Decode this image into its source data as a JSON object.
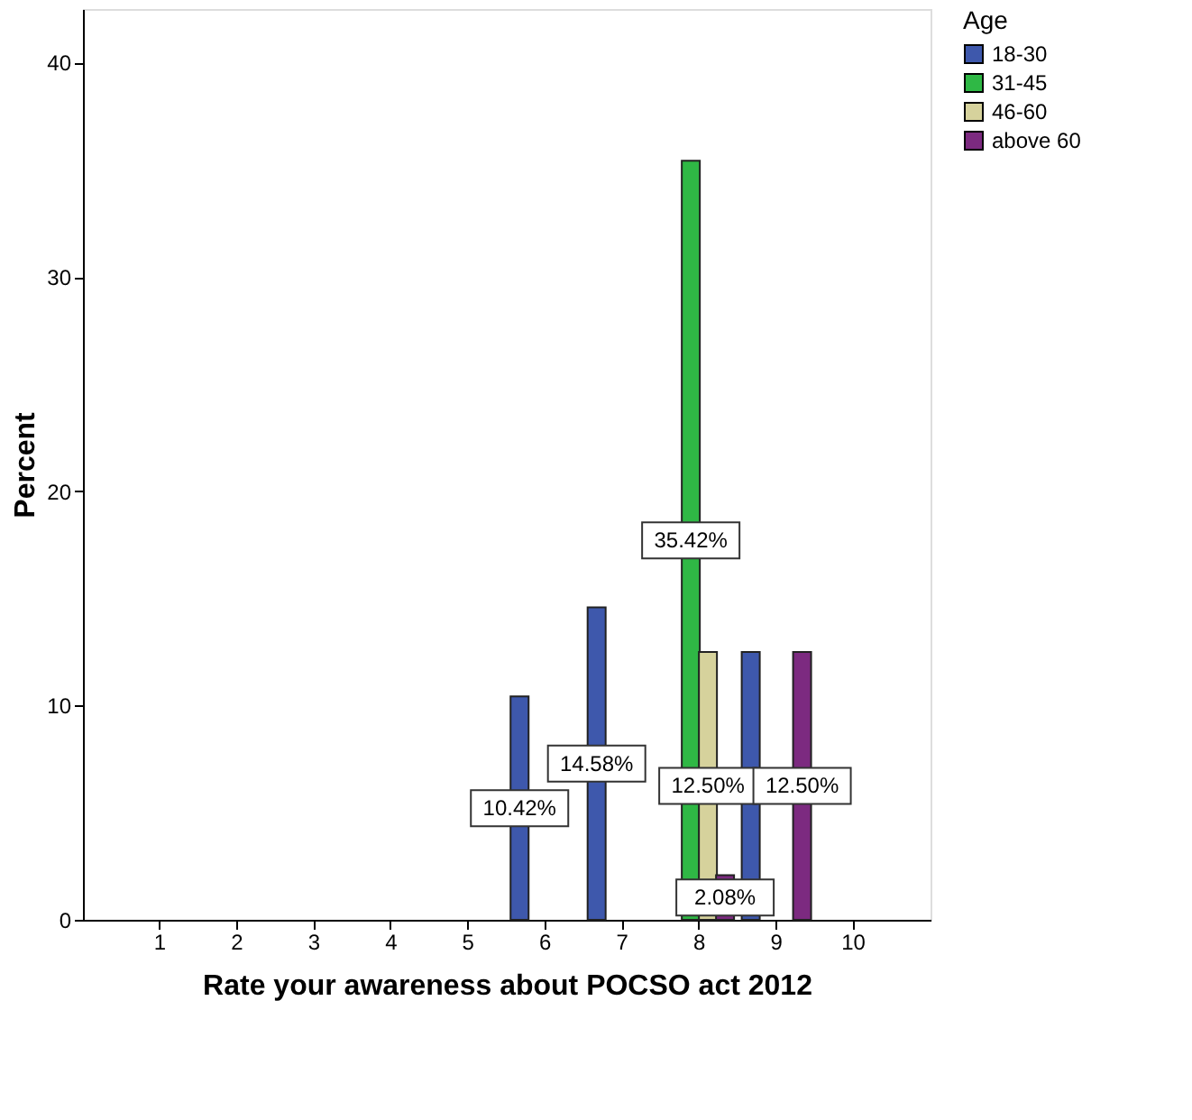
{
  "chart_data": {
    "type": "bar",
    "xlabel": "Rate your awareness about POCSO act 2012",
    "ylabel": "Percent",
    "legend_title": "Age",
    "legend": "top right",
    "categories": [
      "1",
      "2",
      "3",
      "4",
      "5",
      "6",
      "7",
      "8",
      "9",
      "10"
    ],
    "series": [
      {
        "name": "18-30",
        "color": "#3e58ac",
        "values": [
          null,
          null,
          null,
          null,
          null,
          10.42,
          14.58,
          null,
          12.5,
          null
        ],
        "value_labels": [
          null,
          null,
          null,
          null,
          null,
          "10.42%",
          "14.58%",
          null,
          null,
          null
        ]
      },
      {
        "name": "31-45",
        "color": "#2fb845",
        "values": [
          null,
          null,
          null,
          null,
          null,
          null,
          null,
          35.42,
          null,
          null
        ],
        "value_labels": [
          null,
          null,
          null,
          null,
          null,
          null,
          null,
          "35.42%",
          null,
          null
        ]
      },
      {
        "name": "46-60",
        "color": "#d6d29c",
        "values": [
          null,
          null,
          null,
          null,
          null,
          null,
          null,
          12.5,
          null,
          null
        ],
        "value_labels": [
          null,
          null,
          null,
          null,
          null,
          null,
          null,
          "12.50%",
          null,
          null
        ]
      },
      {
        "name": "above 60",
        "color": "#7c2a80",
        "values": [
          null,
          null,
          null,
          null,
          null,
          null,
          null,
          2.08,
          12.5,
          null
        ],
        "value_labels": [
          null,
          null,
          null,
          null,
          null,
          null,
          null,
          "2.08%",
          "12.50%",
          null
        ]
      }
    ],
    "ylim": [
      0,
      42.5
    ],
    "yticks": [
      0,
      10,
      20,
      30,
      40
    ],
    "grid": false
  }
}
